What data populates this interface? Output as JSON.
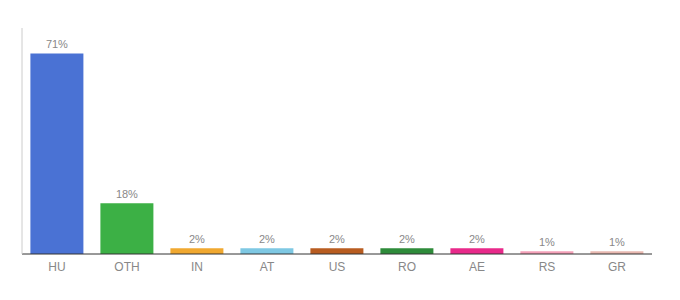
{
  "chart_data": {
    "type": "bar",
    "categories": [
      "HU",
      "OTH",
      "IN",
      "AT",
      "US",
      "RO",
      "AE",
      "RS",
      "GR"
    ],
    "values": [
      71,
      18,
      2,
      2,
      2,
      2,
      2,
      1,
      1
    ],
    "value_labels": [
      "71%",
      "18%",
      "2%",
      "2%",
      "2%",
      "2%",
      "2%",
      "1%",
      "1%"
    ],
    "colors": [
      "#4a72d4",
      "#3cb045",
      "#f0a830",
      "#7ec8e3",
      "#b85c20",
      "#2e8b3a",
      "#e8298a",
      "#f4a0b8",
      "#e8b8b0"
    ],
    "ylim": [
      0,
      80
    ],
    "grid": false,
    "data_labels": true,
    "tick_labels": "x"
  }
}
